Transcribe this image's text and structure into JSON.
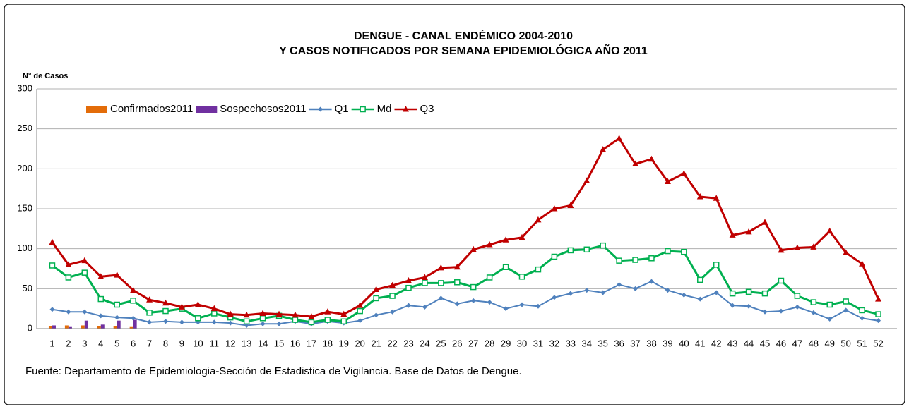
{
  "chart_data": {
    "type": "bar-line",
    "title": "DENGUE - CANAL ENDÉMICO 2004-2010",
    "subtitle": "Y CASOS NOTIFICADOS POR SEMANA EPIDEMIOLÓGICA  AÑO 2011",
    "y_label": "N° de Casos",
    "source": "Fuente: Departamento de Epidemiologia-Sección de Estadistica de Vigilancia. Base de Datos de Dengue.",
    "categories": [
      "1",
      "2",
      "3",
      "4",
      "5",
      "6",
      "7",
      "8",
      "9",
      "10",
      "11",
      "12",
      "13",
      "14",
      "15",
      "16",
      "17",
      "18",
      "19",
      "20",
      "21",
      "22",
      "23",
      "24",
      "25",
      "26",
      "27",
      "28",
      "29",
      "30",
      "31",
      "32",
      "33",
      "34",
      "35",
      "36",
      "37",
      "38",
      "39",
      "40",
      "41",
      "42",
      "43",
      "44",
      "45",
      "46",
      "47",
      "48",
      "49",
      "50",
      "51",
      "52"
    ],
    "ylim": [
      0,
      300
    ],
    "yticks": [
      0,
      50,
      100,
      150,
      200,
      250,
      300
    ],
    "grid": true,
    "series": [
      {
        "name": "Confirmados2011",
        "kind": "bar",
        "color": "#e36c09",
        "values": [
          3,
          4,
          4,
          3,
          3,
          2,
          null,
          null,
          null,
          null,
          null,
          null,
          null,
          null,
          null,
          null,
          null,
          null,
          null,
          null,
          null,
          null,
          null,
          null,
          null,
          null,
          null,
          null,
          null,
          null,
          null,
          null,
          null,
          null,
          null,
          null,
          null,
          null,
          null,
          null,
          null,
          null,
          null,
          null,
          null,
          null,
          null,
          null,
          null,
          null,
          null,
          null
        ]
      },
      {
        "name": "Sospechosos2011",
        "kind": "bar",
        "color": "#7030a0",
        "values": [
          4,
          2,
          10,
          5,
          10,
          11,
          null,
          null,
          null,
          null,
          null,
          null,
          null,
          null,
          null,
          null,
          null,
          null,
          null,
          null,
          null,
          null,
          null,
          null,
          null,
          null,
          null,
          null,
          null,
          null,
          null,
          null,
          null,
          null,
          null,
          null,
          null,
          null,
          null,
          null,
          null,
          null,
          null,
          null,
          null,
          null,
          null,
          null,
          null,
          null,
          null,
          null
        ]
      },
      {
        "name": "Q1",
        "kind": "line",
        "marker": "diamond",
        "color": "#4f81bd",
        "values": [
          24,
          21,
          21,
          16,
          14,
          13,
          8,
          9,
          8,
          8,
          8,
          7,
          4,
          6,
          6,
          9,
          6,
          9,
          7,
          10,
          17,
          21,
          29,
          27,
          38,
          31,
          35,
          33,
          25,
          30,
          28,
          39,
          44,
          48,
          45,
          55,
          50,
          59,
          48,
          42,
          37,
          45,
          29,
          28,
          21,
          22,
          27,
          20,
          12,
          23,
          13,
          10
        ]
      },
      {
        "name": "Md",
        "kind": "line",
        "marker": "square",
        "color": "#00b050",
        "values": [
          79,
          64,
          70,
          37,
          30,
          35,
          20,
          22,
          25,
          13,
          19,
          14,
          9,
          13,
          16,
          11,
          8,
          11,
          9,
          22,
          38,
          41,
          51,
          57,
          57,
          58,
          52,
          64,
          77,
          65,
          74,
          90,
          98,
          99,
          104,
          85,
          86,
          88,
          97,
          96,
          61,
          80,
          44,
          46,
          44,
          60,
          41,
          33,
          30,
          34,
          23,
          18
        ]
      },
      {
        "name": "Q3",
        "kind": "line",
        "marker": "triangle",
        "color": "#c00000",
        "values": [
          108,
          80,
          85,
          65,
          67,
          48,
          36,
          32,
          27,
          30,
          25,
          18,
          17,
          19,
          18,
          17,
          15,
          21,
          18,
          29,
          49,
          54,
          60,
          64,
          76,
          77,
          99,
          105,
          111,
          114,
          136,
          150,
          154,
          185,
          224,
          238,
          206,
          212,
          184,
          194,
          165,
          163,
          117,
          121,
          133,
          98,
          101,
          102,
          122,
          95,
          81,
          37
        ]
      }
    ]
  }
}
